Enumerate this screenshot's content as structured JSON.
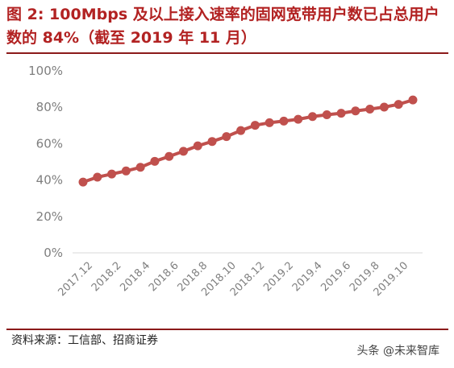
{
  "title": "图 2:  100Mbps 及以上接入速率的固网宽带用户数已占总用户数的 84%（截至 2019 年 11 月）",
  "source": "资料来源：工信部、招商证券",
  "watermark": "头条 @未来智库",
  "chart_data": {
    "type": "line",
    "title": "图 2:  100Mbps 及以上接入速率的固网宽带用户数已占总用户数的 84%（截至 2019 年 11 月）",
    "xlabel": "",
    "ylabel": "",
    "ylim": [
      0,
      100
    ],
    "y_ticks": [
      "0%",
      "20%",
      "40%",
      "60%",
      "80%",
      "100%"
    ],
    "y_tick_values": [
      0,
      20,
      40,
      60,
      80,
      100
    ],
    "grid": false,
    "legend": "none",
    "x": [
      "2017.12",
      "2018.1",
      "2018.2",
      "2018.3",
      "2018.4",
      "2018.5",
      "2018.6",
      "2018.7",
      "2018.8",
      "2018.9",
      "2018.10",
      "2018.11",
      "2018.12",
      "2019.1",
      "2019.2",
      "2019.3",
      "2019.4",
      "2019.5",
      "2019.6",
      "2019.7",
      "2019.8",
      "2019.9",
      "2019.10",
      "2019.11"
    ],
    "x_tick_labels": [
      "2017.12",
      "2018.2",
      "2018.4",
      "2018.6",
      "2018.8",
      "2018.10",
      "2018.12",
      "2019.2",
      "2019.4",
      "2019.6",
      "2019.8",
      "2019.10"
    ],
    "series": [
      {
        "values": [
          38.9,
          41.6,
          43.3,
          45.0,
          47.0,
          50.3,
          53.0,
          55.8,
          58.8,
          61.2,
          63.9,
          67.2,
          70.1,
          71.5,
          72.4,
          73.4,
          74.9,
          75.9,
          76.7,
          78.0,
          79.0,
          80.1,
          81.6,
          84.0
        ],
        "color": "#c0504d"
      }
    ]
  }
}
